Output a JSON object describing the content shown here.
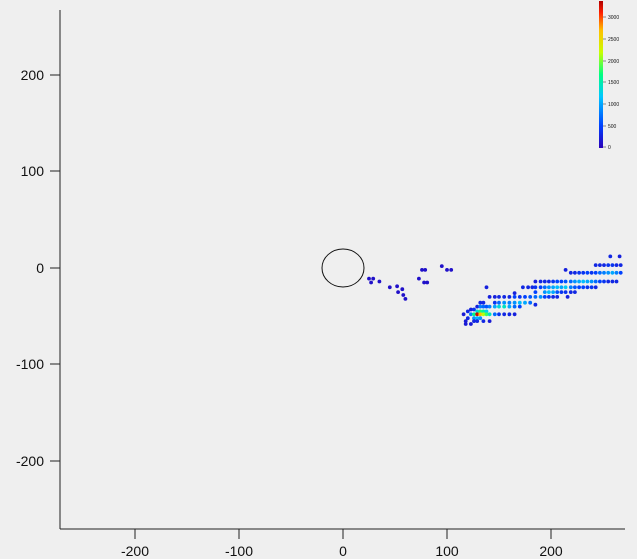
{
  "chart_data": {
    "type": "scatter",
    "title": "",
    "xlabel": "",
    "ylabel": "",
    "xlim": [
      -270,
      270
    ],
    "ylim": [
      -270,
      270
    ],
    "grid": false,
    "x_ticks": [
      -200,
      -100,
      0,
      100,
      200
    ],
    "x_tick_labels": [
      "-200",
      "-100",
      "0",
      "100",
      "200"
    ],
    "y_ticks": [
      200,
      100,
      0,
      -100,
      -200
    ],
    "y_tick_labels": [
      "200",
      "100",
      "0",
      "-100",
      "-200"
    ],
    "origin_marker": {
      "shape": "circle",
      "center": [
        0,
        0
      ],
      "radius": 20
    },
    "colorbar": {
      "colormap": "jet",
      "range": [
        0,
        3300
      ],
      "ticks": [
        3000,
        2500,
        2000,
        1500,
        1000,
        500,
        0
      ],
      "tick_labels": [
        "3000",
        "2500",
        "2000",
        "1500",
        "1000",
        "500",
        "0"
      ],
      "placement": "top-right",
      "colors": [
        "#2a00b8",
        "#0040ff",
        "#00c8ff",
        "#00ff80",
        "#c8ff00",
        "#ffc000",
        "#ff2000",
        "#b00000"
      ]
    },
    "points": [
      {
        "x": 25,
        "y": -11,
        "v": 120
      },
      {
        "x": 29,
        "y": -11,
        "v": 120
      },
      {
        "x": 27,
        "y": -15,
        "v": 120
      },
      {
        "x": 35,
        "y": -14,
        "v": 120
      },
      {
        "x": 45,
        "y": -20,
        "v": 120
      },
      {
        "x": 52,
        "y": -19,
        "v": 120
      },
      {
        "x": 53,
        "y": -25,
        "v": 120
      },
      {
        "x": 57,
        "y": -22,
        "v": 120
      },
      {
        "x": 58,
        "y": -28,
        "v": 120
      },
      {
        "x": 60,
        "y": -32,
        "v": 120
      },
      {
        "x": 73,
        "y": -11,
        "v": 120
      },
      {
        "x": 76,
        "y": -2,
        "v": 120
      },
      {
        "x": 79,
        "y": -2,
        "v": 120
      },
      {
        "x": 78,
        "y": -15,
        "v": 120
      },
      {
        "x": 81,
        "y": -15,
        "v": 120
      },
      {
        "x": 95,
        "y": 2,
        "v": 120
      },
      {
        "x": 100,
        "y": -2,
        "v": 120
      },
      {
        "x": 104,
        "y": -2,
        "v": 120
      },
      {
        "x": 116,
        "y": -48,
        "v": 200
      },
      {
        "x": 120,
        "y": -45,
        "v": 300
      },
      {
        "x": 120,
        "y": -52,
        "v": 300
      },
      {
        "x": 118,
        "y": -55,
        "v": 200
      },
      {
        "x": 118,
        "y": -58,
        "v": 200
      },
      {
        "x": 123,
        "y": -58,
        "v": 200
      },
      {
        "x": 123,
        "y": -43,
        "v": 250
      },
      {
        "x": 123,
        "y": -48,
        "v": 800
      },
      {
        "x": 126,
        "y": -43,
        "v": 400
      },
      {
        "x": 126,
        "y": -48,
        "v": 1600
      },
      {
        "x": 126,
        "y": -52,
        "v": 900
      },
      {
        "x": 126,
        "y": -55,
        "v": 300
      },
      {
        "x": 129,
        "y": -40,
        "v": 250
      },
      {
        "x": 129,
        "y": -45,
        "v": 1300
      },
      {
        "x": 129,
        "y": -48,
        "v": 3200
      },
      {
        "x": 129,
        "y": -52,
        "v": 1100
      },
      {
        "x": 129,
        "y": -55,
        "v": 300
      },
      {
        "x": 132,
        "y": -36,
        "v": 300
      },
      {
        "x": 132,
        "y": -40,
        "v": 800
      },
      {
        "x": 132,
        "y": -45,
        "v": 1700
      },
      {
        "x": 132,
        "y": -48,
        "v": 2600
      },
      {
        "x": 132,
        "y": -52,
        "v": 900
      },
      {
        "x": 135,
        "y": -36,
        "v": 300
      },
      {
        "x": 135,
        "y": -40,
        "v": 700
      },
      {
        "x": 135,
        "y": -45,
        "v": 1500
      },
      {
        "x": 135,
        "y": -48,
        "v": 2100
      },
      {
        "x": 135,
        "y": -55,
        "v": 300
      },
      {
        "x": 138,
        "y": -20,
        "v": 250
      },
      {
        "x": 138,
        "y": -40,
        "v": 600
      },
      {
        "x": 138,
        "y": -45,
        "v": 1200
      },
      {
        "x": 138,
        "y": -48,
        "v": 1800
      },
      {
        "x": 141,
        "y": -30,
        "v": 250
      },
      {
        "x": 141,
        "y": -40,
        "v": 800
      },
      {
        "x": 141,
        "y": -48,
        "v": 1400
      },
      {
        "x": 141,
        "y": -55,
        "v": 200
      },
      {
        "x": 146,
        "y": -30,
        "v": 250
      },
      {
        "x": 146,
        "y": -36,
        "v": 400
      },
      {
        "x": 146,
        "y": -40,
        "v": 1000
      },
      {
        "x": 146,
        "y": -48,
        "v": 700
      },
      {
        "x": 150,
        "y": -30,
        "v": 300
      },
      {
        "x": 150,
        "y": -36,
        "v": 700
      },
      {
        "x": 150,
        "y": -40,
        "v": 1300
      },
      {
        "x": 150,
        "y": -48,
        "v": 400
      },
      {
        "x": 155,
        "y": -30,
        "v": 300
      },
      {
        "x": 155,
        "y": -36,
        "v": 900
      },
      {
        "x": 155,
        "y": -40,
        "v": 1400
      },
      {
        "x": 155,
        "y": -48,
        "v": 300
      },
      {
        "x": 160,
        "y": -30,
        "v": 300
      },
      {
        "x": 160,
        "y": -36,
        "v": 800
      },
      {
        "x": 160,
        "y": -40,
        "v": 1000
      },
      {
        "x": 160,
        "y": -48,
        "v": 300
      },
      {
        "x": 165,
        "y": -26,
        "v": 250
      },
      {
        "x": 165,
        "y": -30,
        "v": 500
      },
      {
        "x": 165,
        "y": -36,
        "v": 900
      },
      {
        "x": 165,
        "y": -40,
        "v": 700
      },
      {
        "x": 165,
        "y": -48,
        "v": 250
      },
      {
        "x": 170,
        "y": -30,
        "v": 400
      },
      {
        "x": 170,
        "y": -36,
        "v": 1100
      },
      {
        "x": 170,
        "y": -40,
        "v": 500
      },
      {
        "x": 173,
        "y": -20,
        "v": 300
      },
      {
        "x": 175,
        "y": -30,
        "v": 500
      },
      {
        "x": 175,
        "y": -36,
        "v": 1000
      },
      {
        "x": 178,
        "y": -20,
        "v": 300
      },
      {
        "x": 180,
        "y": -30,
        "v": 600
      },
      {
        "x": 180,
        "y": -36,
        "v": 700
      },
      {
        "x": 182,
        "y": -20,
        "v": 300
      },
      {
        "x": 185,
        "y": -14,
        "v": 250
      },
      {
        "x": 185,
        "y": -20,
        "v": 400
      },
      {
        "x": 185,
        "y": -25,
        "v": 500
      },
      {
        "x": 185,
        "y": -30,
        "v": 700
      },
      {
        "x": 185,
        "y": -38,
        "v": 300
      },
      {
        "x": 190,
        "y": -14,
        "v": 300
      },
      {
        "x": 190,
        "y": -20,
        "v": 500
      },
      {
        "x": 190,
        "y": -30,
        "v": 900
      },
      {
        "x": 194,
        "y": -14,
        "v": 300
      },
      {
        "x": 194,
        "y": -20,
        "v": 700
      },
      {
        "x": 194,
        "y": -25,
        "v": 900
      },
      {
        "x": 194,
        "y": -30,
        "v": 500
      },
      {
        "x": 198,
        "y": -14,
        "v": 300
      },
      {
        "x": 198,
        "y": -20,
        "v": 900
      },
      {
        "x": 198,
        "y": -25,
        "v": 1100
      },
      {
        "x": 198,
        "y": -30,
        "v": 400
      },
      {
        "x": 202,
        "y": -14,
        "v": 400
      },
      {
        "x": 202,
        "y": -20,
        "v": 1000
      },
      {
        "x": 202,
        "y": -25,
        "v": 1000
      },
      {
        "x": 202,
        "y": -30,
        "v": 300
      },
      {
        "x": 206,
        "y": -14,
        "v": 500
      },
      {
        "x": 206,
        "y": -20,
        "v": 1100
      },
      {
        "x": 206,
        "y": -25,
        "v": 600
      },
      {
        "x": 206,
        "y": -30,
        "v": 300
      },
      {
        "x": 210,
        "y": -14,
        "v": 500
      },
      {
        "x": 210,
        "y": -20,
        "v": 1000
      },
      {
        "x": 210,
        "y": -25,
        "v": 400
      },
      {
        "x": 214,
        "y": -2,
        "v": 250
      },
      {
        "x": 214,
        "y": -14,
        "v": 600
      },
      {
        "x": 214,
        "y": -20,
        "v": 1200
      },
      {
        "x": 214,
        "y": -25,
        "v": 400
      },
      {
        "x": 216,
        "y": -30,
        "v": 250
      },
      {
        "x": 219,
        "y": -5,
        "v": 300
      },
      {
        "x": 219,
        "y": -14,
        "v": 700
      },
      {
        "x": 219,
        "y": -20,
        "v": 800
      },
      {
        "x": 219,
        "y": -25,
        "v": 300
      },
      {
        "x": 223,
        "y": -5,
        "v": 300
      },
      {
        "x": 223,
        "y": -14,
        "v": 900
      },
      {
        "x": 223,
        "y": -20,
        "v": 600
      },
      {
        "x": 223,
        "y": -25,
        "v": 300
      },
      {
        "x": 227,
        "y": -5,
        "v": 400
      },
      {
        "x": 227,
        "y": -14,
        "v": 1000
      },
      {
        "x": 227,
        "y": -20,
        "v": 500
      },
      {
        "x": 231,
        "y": -5,
        "v": 400
      },
      {
        "x": 231,
        "y": -14,
        "v": 1100
      },
      {
        "x": 231,
        "y": -20,
        "v": 500
      },
      {
        "x": 235,
        "y": -5,
        "v": 500
      },
      {
        "x": 235,
        "y": -14,
        "v": 1000
      },
      {
        "x": 235,
        "y": -20,
        "v": 400
      },
      {
        "x": 239,
        "y": -5,
        "v": 400
      },
      {
        "x": 239,
        "y": -14,
        "v": 900
      },
      {
        "x": 239,
        "y": -20,
        "v": 400
      },
      {
        "x": 243,
        "y": 3,
        "v": 300
      },
      {
        "x": 243,
        "y": -5,
        "v": 500
      },
      {
        "x": 243,
        "y": -14,
        "v": 700
      },
      {
        "x": 243,
        "y": -20,
        "v": 300
      },
      {
        "x": 247,
        "y": 3,
        "v": 300
      },
      {
        "x": 247,
        "y": -5,
        "v": 700
      },
      {
        "x": 247,
        "y": -14,
        "v": 500
      },
      {
        "x": 251,
        "y": 3,
        "v": 300
      },
      {
        "x": 251,
        "y": -5,
        "v": 800
      },
      {
        "x": 251,
        "y": -14,
        "v": 400
      },
      {
        "x": 255,
        "y": 3,
        "v": 400
      },
      {
        "x": 255,
        "y": -5,
        "v": 900
      },
      {
        "x": 255,
        "y": -14,
        "v": 300
      },
      {
        "x": 259,
        "y": 3,
        "v": 400
      },
      {
        "x": 259,
        "y": -5,
        "v": 1000
      },
      {
        "x": 259,
        "y": -14,
        "v": 300
      },
      {
        "x": 263,
        "y": 3,
        "v": 300
      },
      {
        "x": 263,
        "y": -5,
        "v": 800
      },
      {
        "x": 263,
        "y": -14,
        "v": 300
      },
      {
        "x": 267,
        "y": 3,
        "v": 300
      },
      {
        "x": 267,
        "y": -5,
        "v": 500
      },
      {
        "x": 257,
        "y": 12,
        "v": 300
      },
      {
        "x": 266,
        "y": 12,
        "v": 250
      }
    ]
  }
}
